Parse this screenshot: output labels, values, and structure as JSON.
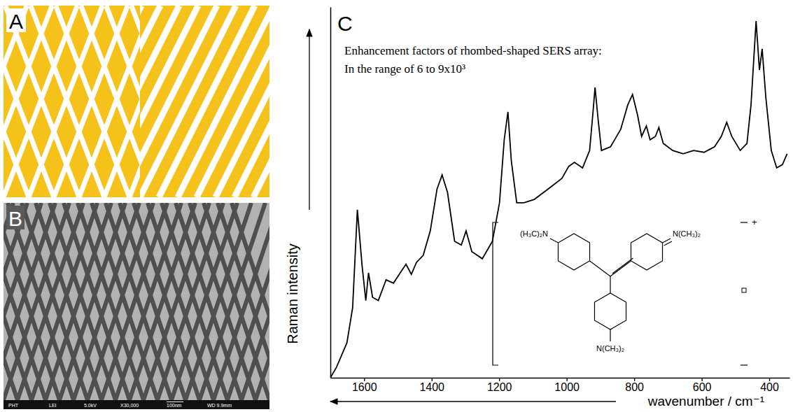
{
  "panel_labels": [
    "A",
    "B",
    "C"
  ],
  "panels": {
    "B": {
      "info": [
        "PHT",
        "LEI",
        "5.0kV",
        "X30,000",
        "100nm",
        "WD 9.9mm"
      ]
    }
  },
  "inset": {
    "labels": [
      "(H₃C)₂N",
      "N(CH₃)₂",
      "N(CH₃)₂"
    ],
    "charge": "+"
  },
  "chart_data": {
    "type": "line",
    "x_label": "wavenumber / cm⁻¹",
    "y_label": "Raman intensity",
    "annotations": [
      "Enhancement factors of rhombed-shaped SERS array:",
      "In the range of 6 to 9x10³"
    ],
    "xlim": [
      1700,
      340
    ],
    "xticks": [
      1600,
      1400,
      1200,
      1000,
      800,
      600,
      400
    ],
    "ylim": [
      0,
      100
    ],
    "tick_labels": "x",
    "x": [
      1700,
      1682,
      1651,
      1634,
      1620,
      1606,
      1595,
      1587,
      1575,
      1558,
      1535,
      1513,
      1493,
      1476,
      1460,
      1445,
      1425,
      1404,
      1384,
      1369,
      1353,
      1332,
      1312,
      1298,
      1281,
      1250,
      1220,
      1199,
      1185,
      1174,
      1164,
      1148,
      1127,
      1096,
      1055,
      1014,
      994,
      977,
      953,
      932,
      922,
      916,
      907,
      897,
      870,
      840,
      819,
      805,
      790,
      778,
      764,
      753,
      737,
      727,
      714,
      686,
      655,
      624,
      593,
      562,
      542,
      526,
      511,
      486,
      466,
      454,
      439,
      429,
      421,
      410,
      394,
      378,
      361,
      347
    ],
    "series": [
      {
        "color": "#000000",
        "values": [
          0,
          2.8,
          9.4,
          18.9,
          45.3,
          30.2,
          20.8,
          28.3,
          21.7,
          20.8,
          26.4,
          25.5,
          28.3,
          30.6,
          27.9,
          31.1,
          33.0,
          39.6,
          50.9,
          54.7,
          50.0,
          36.8,
          35.8,
          39.6,
          34.0,
          32.1,
          36.8,
          47.2,
          64.2,
          71.7,
          58.5,
          47.2,
          47.2,
          48.1,
          50.9,
          53.8,
          57.0,
          58.1,
          56.6,
          61.3,
          71.7,
          78.3,
          69.8,
          61.3,
          62.3,
          67.0,
          73.6,
          76.4,
          70.8,
          65.1,
          67.9,
          64.2,
          65.1,
          67.5,
          63.2,
          61.3,
          60.4,
          61.3,
          60.8,
          62.3,
          65.1,
          68.9,
          65.1,
          61.3,
          63.2,
          73.6,
          96.2,
          83.0,
          88.7,
          75.5,
          61.3,
          56.6,
          57.5,
          60.4
        ]
      }
    ]
  }
}
